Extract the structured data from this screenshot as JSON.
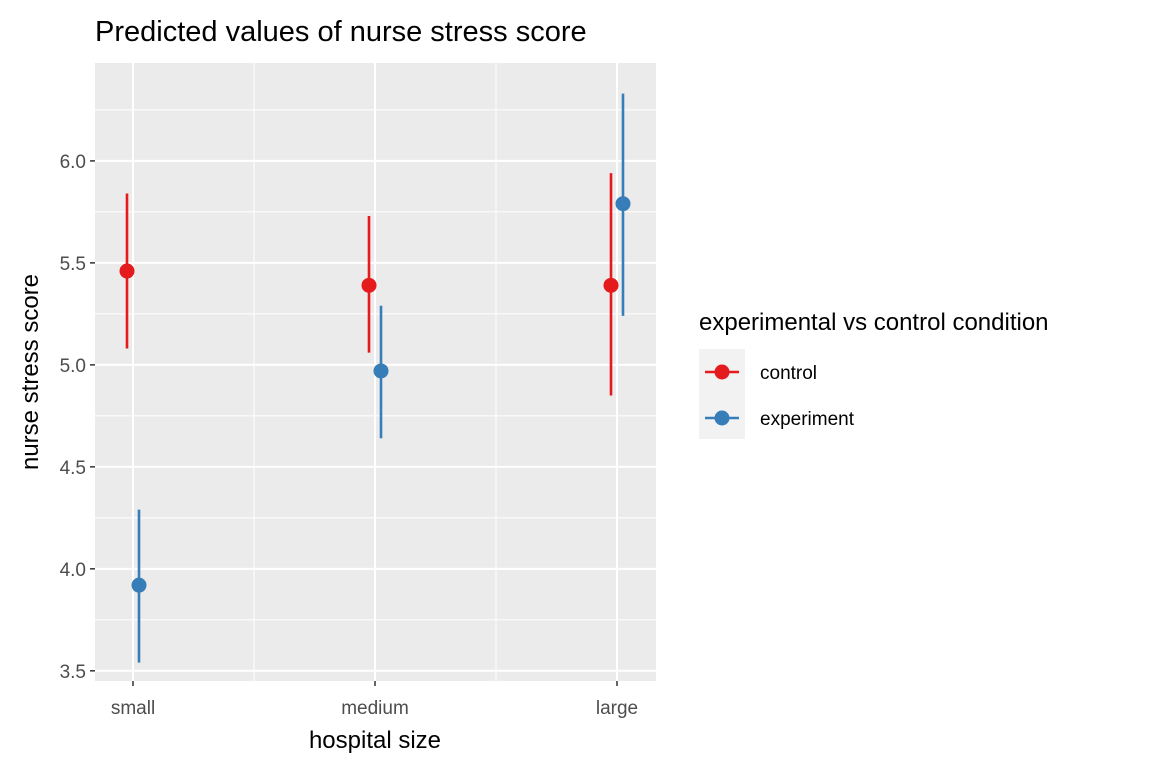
{
  "chart_data": {
    "type": "scatter",
    "title": "Predicted values of nurse stress score",
    "xlabel": "hospital size",
    "ylabel": "nurse stress score",
    "categories": [
      "small",
      "medium",
      "large"
    ],
    "ylim": [
      3.45,
      6.48
    ],
    "yticks": [
      "3.5",
      "4.0",
      "4.5",
      "5.0",
      "5.5",
      "6.0"
    ],
    "grid": true,
    "legend": {
      "title": "experimental vs control condition",
      "position": "right"
    },
    "series": [
      {
        "name": "control",
        "color": "#E41A1C",
        "values": [
          5.46,
          5.39,
          5.39
        ],
        "lower": [
          5.08,
          5.06,
          4.85
        ],
        "upper": [
          5.84,
          5.73,
          5.94
        ]
      },
      {
        "name": "experiment",
        "color": "#377EB8",
        "values": [
          3.92,
          4.97,
          5.79
        ],
        "lower": [
          3.54,
          4.64,
          5.24
        ],
        "upper": [
          4.29,
          5.29,
          6.33
        ]
      }
    ]
  }
}
